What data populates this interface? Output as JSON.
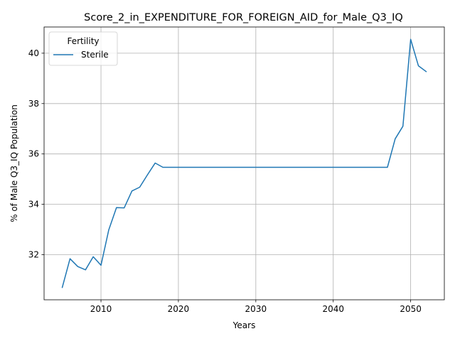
{
  "chart_data": {
    "type": "line",
    "title": "Score_2_in_EXPENDITURE_FOR_FOREIGN_AID_for_Male_Q3_IQ",
    "xlabel": "Years",
    "ylabel": "% of Male Q3_IQ Population",
    "xlim": [
      2002.65,
      2054.35
    ],
    "ylim": [
      30.21,
      41.04
    ],
    "xticks": [
      2010,
      2020,
      2030,
      2040,
      2050
    ],
    "yticks": [
      32,
      34,
      36,
      38,
      40
    ],
    "grid": true,
    "legend": {
      "title": "Fertility",
      "position": "top-left"
    },
    "series": [
      {
        "name": "Sterile",
        "color": "#1f77b4",
        "x": [
          2005,
          2006,
          2007,
          2008,
          2009,
          2010,
          2011,
          2012,
          2013,
          2014,
          2015,
          2016,
          2017,
          2018,
          2019,
          2020,
          2021,
          2022,
          2023,
          2024,
          2025,
          2026,
          2027,
          2028,
          2029,
          2030,
          2031,
          2032,
          2033,
          2034,
          2035,
          2036,
          2037,
          2038,
          2039,
          2040,
          2041,
          2042,
          2043,
          2044,
          2045,
          2046,
          2047,
          2048,
          2049,
          2050,
          2051,
          2052
        ],
        "y": [
          30.7,
          31.84,
          31.53,
          31.4,
          31.92,
          31.58,
          32.98,
          33.87,
          33.86,
          34.53,
          34.68,
          35.17,
          35.64,
          35.47,
          35.47,
          35.47,
          35.47,
          35.47,
          35.47,
          35.47,
          35.47,
          35.47,
          35.47,
          35.47,
          35.47,
          35.47,
          35.47,
          35.47,
          35.47,
          35.47,
          35.47,
          35.47,
          35.47,
          35.47,
          35.47,
          35.47,
          35.47,
          35.47,
          35.47,
          35.47,
          35.47,
          35.47,
          35.47,
          36.6,
          37.1,
          40.55,
          39.5,
          39.27
        ]
      }
    ]
  }
}
